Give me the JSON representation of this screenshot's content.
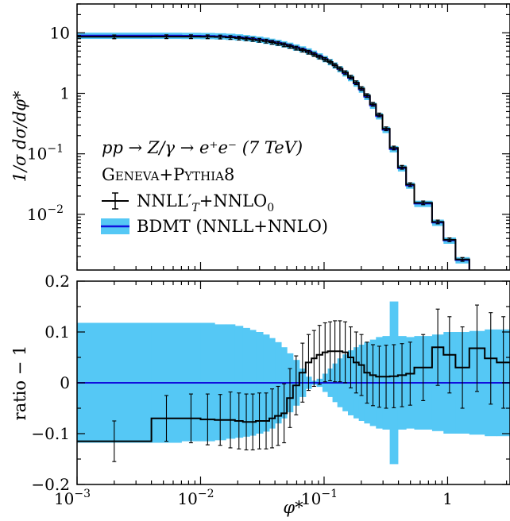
{
  "colors": {
    "band": "#55c8f5",
    "bdmt_line": "#1010dd",
    "geneva_line": "#000000",
    "axes": "#000000",
    "zero_line": "#1010dd"
  },
  "chart_data": [
    {
      "type": "line",
      "panel": "main",
      "xscale": "log",
      "yscale": "log",
      "xlim": [
        0.001,
        3.2
      ],
      "ylim": [
        0.0012,
        30
      ],
      "ylabel": "1/σ dσ/dφ*",
      "xtick_labels": [],
      "ytick_values": [
        10,
        1,
        0.1,
        0.01
      ],
      "ytick_labels": [
        {
          "base": "10",
          "sup": ""
        },
        {
          "base": "1",
          "sup": ""
        },
        {
          "base": "10",
          "sup": "−1"
        },
        {
          "base": "10",
          "sup": "−2"
        }
      ],
      "legend_position": "lower-left",
      "annotations": [
        "pp → Z/γ → e⁺e⁻ (7 TeV)",
        "Geneva+Pythia8"
      ],
      "x_edges": [
        0.001,
        0.004,
        0.007,
        0.01,
        0.013,
        0.016,
        0.019,
        0.022,
        0.025,
        0.028,
        0.032,
        0.036,
        0.04,
        0.045,
        0.05,
        0.056,
        0.063,
        0.071,
        0.079,
        0.087,
        0.097,
        0.107,
        0.117,
        0.128,
        0.141,
        0.156,
        0.173,
        0.191,
        0.211,
        0.235,
        0.263,
        0.297,
        0.34,
        0.396,
        0.461,
        0.537,
        0.749,
        0.926,
        1.159,
        1.499,
        1.998,
        2.5,
        3.2
      ],
      "series": [
        {
          "name": "NNLL′ₜ+NNLO₀",
          "values": [
            8.6,
            8.65,
            8.65,
            8.62,
            8.55,
            8.4,
            8.2,
            8.0,
            7.8,
            7.55,
            7.3,
            7.0,
            6.7,
            6.35,
            6.0,
            5.6,
            5.2,
            4.8,
            4.4,
            4.0,
            3.65,
            3.3,
            2.9,
            2.55,
            2.2,
            1.85,
            1.5,
            1.2,
            0.92,
            0.66,
            0.44,
            0.26,
            0.125,
            0.06,
            0.031,
            0.0155,
            0.0075,
            0.0038,
            0.0018,
            0.0011,
            0.0009,
            0.0008
          ]
        },
        {
          "name": "BDMT (NNLL+NNLO)",
          "values": [
            9.0,
            9.0,
            8.95,
            8.9,
            8.8,
            8.65,
            8.45,
            8.22,
            8.0,
            7.75,
            7.45,
            7.15,
            6.85,
            6.5,
            6.15,
            5.75,
            5.35,
            4.95,
            4.55,
            4.1,
            3.7,
            3.3,
            2.9,
            2.52,
            2.15,
            1.8,
            1.46,
            1.16,
            0.88,
            0.63,
            0.42,
            0.25,
            0.12,
            0.058,
            0.03,
            0.015,
            0.0073,
            0.0037,
            0.00175,
            0.00108,
            0.00088,
            0.00078
          ],
          "band_rel": 0.12
        }
      ]
    },
    {
      "type": "line",
      "panel": "ratio",
      "xscale": "log",
      "xlim": [
        0.001,
        3.2
      ],
      "ylim": [
        -0.2,
        0.2
      ],
      "xlabel": "φ*",
      "ylabel": "ratio − 1",
      "xtick_values": [
        0.001,
        0.01,
        0.1,
        1
      ],
      "xtick_labels": [
        {
          "base": "10",
          "sup": "−3"
        },
        {
          "base": "10",
          "sup": "−2"
        },
        {
          "base": "10",
          "sup": "−1"
        },
        {
          "base": "1",
          "sup": ""
        }
      ],
      "ytick_values": [
        0.2,
        0.1,
        0,
        -0.1,
        -0.2
      ],
      "ytick_labels": [
        "0.2",
        "0.1",
        "0",
        "−0.1",
        "−0.2"
      ],
      "x_edges": [
        0.001,
        0.004,
        0.007,
        0.01,
        0.013,
        0.016,
        0.019,
        0.022,
        0.025,
        0.028,
        0.032,
        0.036,
        0.04,
        0.045,
        0.05,
        0.056,
        0.063,
        0.071,
        0.079,
        0.087,
        0.097,
        0.107,
        0.117,
        0.128,
        0.141,
        0.156,
        0.173,
        0.191,
        0.211,
        0.235,
        0.263,
        0.297,
        0.34,
        0.396,
        0.461,
        0.537,
        0.749,
        0.926,
        1.159,
        1.499,
        1.998,
        2.5,
        3.2
      ],
      "series": [
        {
          "name": "NNLL′ₜ+NNLO₀",
          "values": [
            -0.115,
            -0.07,
            -0.07,
            -0.072,
            -0.073,
            -0.073,
            -0.075,
            -0.077,
            -0.077,
            -0.075,
            -0.075,
            -0.07,
            -0.065,
            -0.06,
            -0.03,
            -0.005,
            0.02,
            0.04,
            0.048,
            0.055,
            0.06,
            0.062,
            0.062,
            0.062,
            0.06,
            0.05,
            0.04,
            0.035,
            0.02,
            0.015,
            0.012,
            0.012,
            0.013,
            0.015,
            0.018,
            0.03,
            0.07,
            0.055,
            0.03,
            0.068,
            0.048,
            0.04
          ],
          "errors": [
            0.04,
            0.045,
            0.048,
            0.05,
            0.05,
            0.055,
            0.055,
            0.055,
            0.055,
            0.055,
            0.055,
            0.058,
            0.058,
            0.058,
            0.058,
            0.058,
            0.058,
            0.055,
            0.055,
            0.058,
            0.058,
            0.058,
            0.06,
            0.06,
            0.06,
            0.06,
            0.06,
            0.06,
            0.06,
            0.06,
            0.06,
            0.062,
            0.062,
            0.062,
            0.062,
            0.065,
            0.075,
            0.075,
            0.08,
            0.085,
            0.09,
            0.09
          ]
        },
        {
          "name": "BDMT (NNLL+NNLO)",
          "values": [
            0,
            0,
            0,
            0,
            0,
            0,
            0,
            0,
            0,
            0,
            0,
            0,
            0,
            0,
            0,
            0,
            0,
            0,
            0,
            0,
            0,
            0,
            0,
            0,
            0,
            0,
            0,
            0,
            0,
            0,
            0,
            0,
            0,
            0,
            0,
            0,
            0,
            0,
            0,
            0,
            0,
            0
          ],
          "band_upper": [
            0.118,
            0.118,
            0.118,
            0.118,
            0.115,
            0.115,
            0.112,
            0.108,
            0.104,
            0.1,
            0.095,
            0.088,
            0.08,
            0.07,
            0.058,
            0.045,
            0.028,
            0.012,
            0.004,
            0.008,
            0.018,
            0.028,
            0.038,
            0.048,
            0.056,
            0.064,
            0.07,
            0.075,
            0.08,
            0.085,
            0.09,
            0.092,
            0.16,
            0.092,
            0.09,
            0.092,
            0.095,
            0.1,
            0.1,
            0.102,
            0.105,
            0.105
          ],
          "band_lower": [
            -0.118,
            -0.118,
            -0.115,
            -0.115,
            -0.113,
            -0.11,
            -0.108,
            -0.106,
            -0.104,
            -0.1,
            -0.096,
            -0.09,
            -0.08,
            -0.07,
            -0.058,
            -0.045,
            -0.028,
            -0.012,
            -0.004,
            -0.008,
            -0.018,
            -0.028,
            -0.038,
            -0.048,
            -0.056,
            -0.064,
            -0.07,
            -0.075,
            -0.08,
            -0.085,
            -0.09,
            -0.092,
            -0.16,
            -0.092,
            -0.09,
            -0.092,
            -0.095,
            -0.1,
            -0.1,
            -0.102,
            -0.105,
            -0.105
          ]
        }
      ]
    }
  ],
  "legend": {
    "geneva_label_base": "NNLL",
    "geneva_label_prime": "′",
    "geneva_label_sub": "T",
    "geneva_label_rest": "+NNLO",
    "geneva_label_sub2": "0",
    "bdmt_label": "BDMT (NNLL+NNLO)"
  },
  "annotation": {
    "process": "pp → Z/γ → e⁺e⁻ (7 TeV)",
    "generator_G": "G",
    "generator_eneva": "ENEVA",
    "generator_plus": "+",
    "generator_P": "P",
    "generator_ythia": "YTHIA",
    "generator_8": "8"
  },
  "labels": {
    "main_ylabel": "1/σ dσ/dφ*",
    "ratio_ylabel": "ratio − 1",
    "xlabel": "φ*"
  }
}
